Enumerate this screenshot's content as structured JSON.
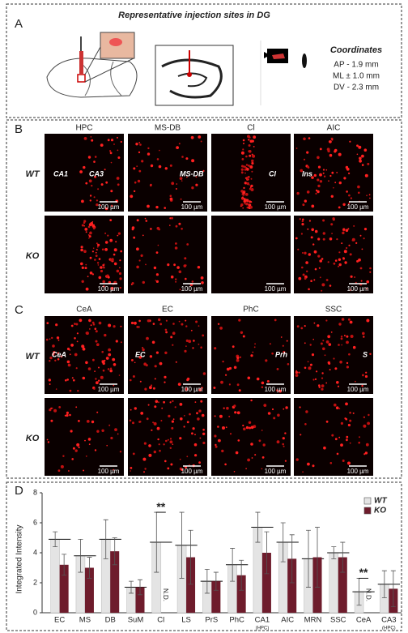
{
  "panel_a": {
    "letter": "A",
    "title": "Representative injection sites in DG",
    "coordinates_title": "Coordinates",
    "coordinates": [
      "AP - 1.9 mm",
      "ML ± 1.0 mm",
      "DV - 2.3 mm"
    ]
  },
  "panel_b": {
    "letter": "B",
    "columns": [
      "HPC",
      "MS-DB",
      "Cl",
      "AIC"
    ],
    "rows": [
      "WT",
      "KO"
    ],
    "region_labels": [
      [
        "CA1",
        "CA3"
      ],
      [
        "MS-DB"
      ],
      [
        "Cl"
      ],
      [
        "Ins"
      ]
    ],
    "scale_bar": "100 µm"
  },
  "panel_c": {
    "letter": "C",
    "columns": [
      "CeA",
      "EC",
      "PhC",
      "SSC"
    ],
    "rows": [
      "WT",
      "KO"
    ],
    "region_labels": [
      [
        "CeA"
      ],
      [
        "EC"
      ],
      [
        "Prh"
      ],
      [
        "S"
      ]
    ],
    "scale_bar": "100 µm"
  },
  "panel_d": {
    "letter": "D",
    "chart_data": {
      "type": "bar",
      "y_label": "Integrated Intensity",
      "categories": [
        "EC",
        "MS",
        "DB",
        "SuM",
        "Cl",
        "LS",
        "PrS",
        "PhC",
        "CA1",
        "AIC",
        "MRN",
        "SSC",
        "CeA",
        "CA3"
      ],
      "sublabels": [
        null,
        null,
        null,
        null,
        null,
        null,
        null,
        null,
        "(HPC)",
        null,
        null,
        null,
        null,
        "(HPC)"
      ],
      "series": [
        {
          "name": "WT",
          "color": "#e4e4e4",
          "values": [
            4.9,
            3.8,
            4.9,
            1.7,
            4.7,
            4.5,
            2.1,
            3.2,
            5.7,
            4.7,
            3.6,
            4.0,
            1.4,
            1.9
          ],
          "errors": [
            0.5,
            1.1,
            1.3,
            0.4,
            2.0,
            2.2,
            0.8,
            1.1,
            1.0,
            1.3,
            1.9,
            0.4,
            0.9,
            0.9
          ]
        },
        {
          "name": "KO",
          "color": "#6e1c2c",
          "values": [
            3.2,
            3.0,
            4.1,
            1.7,
            null,
            3.7,
            2.1,
            2.5,
            4.0,
            3.6,
            3.7,
            3.7,
            null,
            1.6
          ],
          "errors": [
            0.7,
            0.7,
            0.9,
            0.5,
            null,
            1.8,
            0.6,
            1.0,
            1.4,
            1.6,
            2.0,
            1.0,
            null,
            1.2
          ]
        }
      ],
      "nd_label": "N.D.",
      "annotations": [
        {
          "text": "**",
          "category": "Cl"
        },
        {
          "text": "**",
          "category": "CeA"
        }
      ],
      "ylim": [
        0,
        8
      ],
      "yticks": [
        0,
        2,
        4,
        6,
        8
      ],
      "legend": "top-right"
    }
  }
}
